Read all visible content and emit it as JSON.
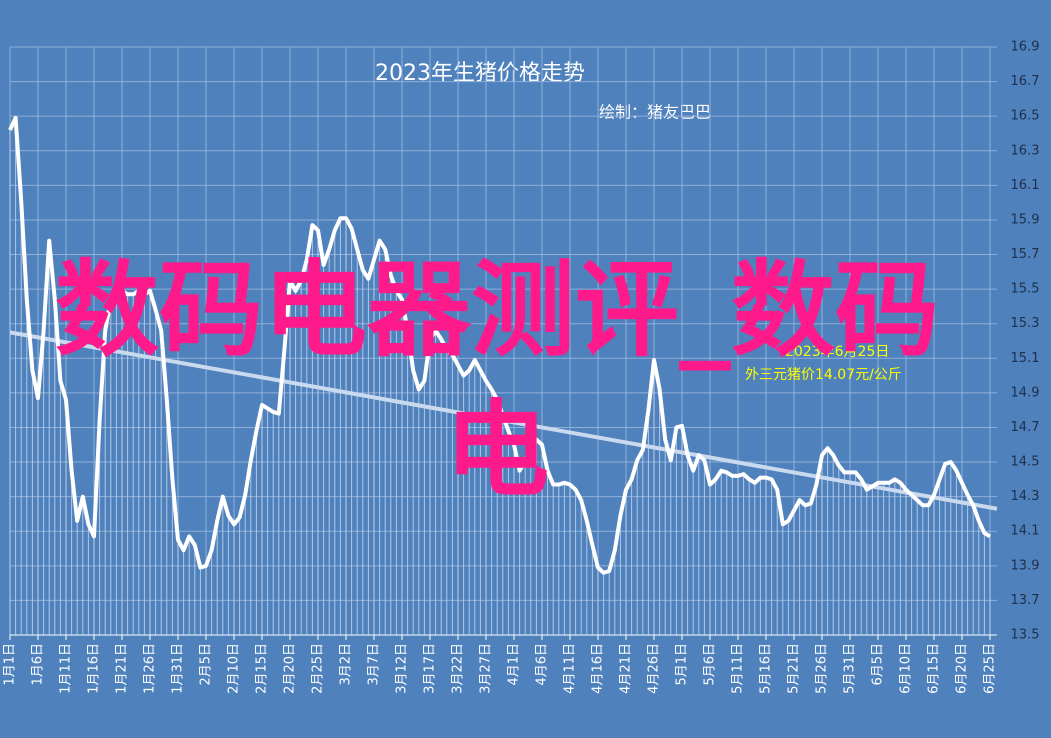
{
  "chart_data": {
    "type": "line",
    "title": "2023年生猪价格走势",
    "subtitle": "绘制：猪友巴巴",
    "annotation": [
      "2023年6月25日",
      "外三元猪价14.07元/公斤"
    ],
    "watermark": "数码电器测评_数码电",
    "categories": [
      "1月1日",
      null,
      null,
      null,
      null,
      "1月6日",
      null,
      null,
      null,
      null,
      "1月11日",
      null,
      null,
      null,
      null,
      "1月16日",
      null,
      null,
      null,
      null,
      "1月21日",
      null,
      null,
      null,
      null,
      "1月26日",
      null,
      null,
      null,
      null,
      "1月31日",
      null,
      null,
      null,
      null,
      "2月5日",
      null,
      null,
      null,
      null,
      "2月10日",
      null,
      null,
      null,
      null,
      "2月15日",
      null,
      null,
      null,
      null,
      "2月20日",
      null,
      null,
      null,
      null,
      "2月25日",
      null,
      null,
      null,
      null,
      "3月2日",
      null,
      null,
      null,
      null,
      "3月7日",
      null,
      null,
      null,
      null,
      "3月12日",
      null,
      null,
      null,
      null,
      "3月17日",
      null,
      null,
      null,
      null,
      "3月22日",
      null,
      null,
      null,
      null,
      "3月27日",
      null,
      null,
      null,
      null,
      "4月1日",
      null,
      null,
      null,
      null,
      "4月6日",
      null,
      null,
      null,
      null,
      "4月11日",
      null,
      null,
      null,
      null,
      "4月16日",
      null,
      null,
      null,
      null,
      "4月21日",
      null,
      null,
      null,
      null,
      "4月26日",
      null,
      null,
      null,
      null,
      "5月1日",
      null,
      null,
      null,
      null,
      "5月6日",
      null,
      null,
      null,
      null,
      "5月11日",
      null,
      null,
      null,
      null,
      "5月16日",
      null,
      null,
      null,
      null,
      "5月21日",
      null,
      null,
      null,
      null,
      "5月26日",
      null,
      null,
      null,
      null,
      "5月31日",
      null,
      null,
      null,
      null,
      "6月5日",
      null,
      null,
      null,
      null,
      "6月10日",
      null,
      null,
      null,
      null,
      "6月15日",
      null,
      null,
      null,
      null,
      "6月20日",
      null,
      null,
      null,
      null,
      "6月25日"
    ],
    "series": [
      {
        "color": "#ffffff",
        "values": [
          16.42,
          16.49,
          16.01,
          15.44,
          15.03,
          14.87,
          15.26,
          15.78,
          15.44,
          14.97,
          14.86,
          14.45,
          14.16,
          14.3,
          14.14,
          14.07,
          14.74,
          15.26,
          15.44,
          15.49,
          15.49,
          15.47,
          15.47,
          15.49,
          15.47,
          15.49,
          15.38,
          15.26,
          14.86,
          14.4,
          14.05,
          13.99,
          14.07,
          14.02,
          13.89,
          13.9,
          13.99,
          14.16,
          14.3,
          14.19,
          14.14,
          14.18,
          14.31,
          14.51,
          14.68,
          14.83,
          14.81,
          14.79,
          14.78,
          15.15,
          15.55,
          15.49,
          15.55,
          15.67,
          15.87,
          15.84,
          15.64,
          15.73,
          15.84,
          15.91,
          15.91,
          15.85,
          15.73,
          15.61,
          15.56,
          15.67,
          15.78,
          15.73,
          15.58,
          15.49,
          15.44,
          15.26,
          15.03,
          14.92,
          14.97,
          15.21,
          15.26,
          15.21,
          15.15,
          15.12,
          15.06,
          15.0,
          15.03,
          15.09,
          15.03,
          14.97,
          14.92,
          14.86,
          14.77,
          14.68,
          14.6,
          14.45,
          14.51,
          14.57,
          14.63,
          14.6,
          14.45,
          14.37,
          14.37,
          14.38,
          14.37,
          14.34,
          14.28,
          14.16,
          14.02,
          13.89,
          13.86,
          13.87,
          13.99,
          14.19,
          14.34,
          14.4,
          14.51,
          14.57,
          14.8,
          15.09,
          14.92,
          14.63,
          14.51,
          14.7,
          14.71,
          14.54,
          14.45,
          14.54,
          14.51,
          14.37,
          14.4,
          14.45,
          14.44,
          14.42,
          14.42,
          14.43,
          14.4,
          14.38,
          14.41,
          14.41,
          14.4,
          14.34,
          14.14,
          14.16,
          14.22,
          14.28,
          14.25,
          14.26,
          14.37,
          14.54,
          14.58,
          14.54,
          14.48,
          14.44,
          14.44,
          14.44,
          14.4,
          14.34,
          14.36,
          14.38,
          14.38,
          14.38,
          14.4,
          14.38,
          14.34,
          14.31,
          14.28,
          14.25,
          14.25,
          14.31,
          14.4,
          14.49,
          14.5,
          14.45,
          14.38,
          14.31,
          14.25,
          14.16,
          14.09,
          14.07
        ]
      }
    ],
    "trend": {
      "color": "#c9d9ee",
      "values": [
        15.25,
        14.23
      ]
    },
    "ylim": [
      13.5,
      16.9
    ],
    "yticks": [
      13.5,
      13.7,
      13.9,
      14.1,
      14.3,
      14.5,
      14.7,
      14.9,
      15.1,
      15.3,
      15.5,
      15.7,
      15.9,
      16.1,
      16.3,
      16.5,
      16.7,
      16.9
    ],
    "grid": true,
    "background": "#4f81bd"
  }
}
